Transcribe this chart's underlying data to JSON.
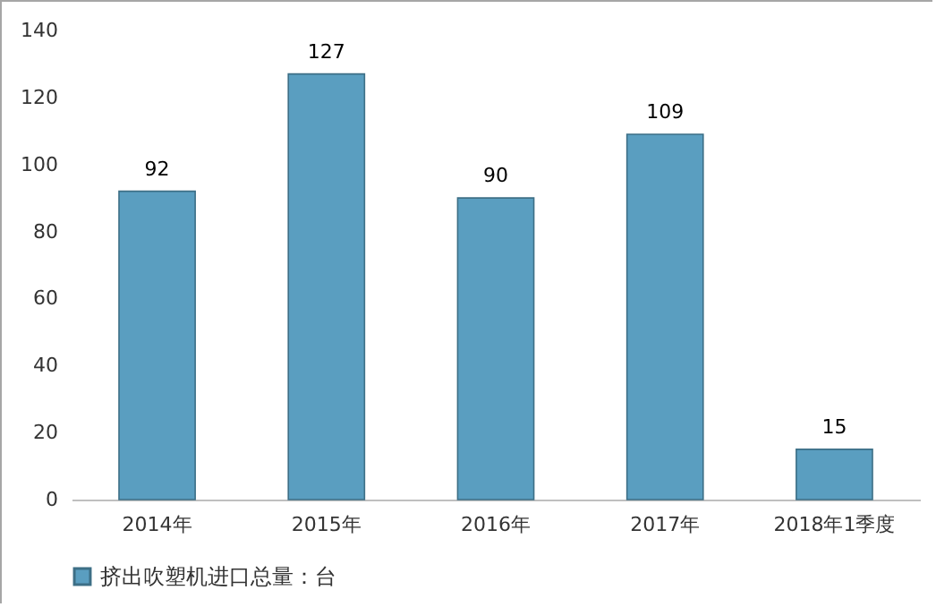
{
  "chart_data": {
    "type": "bar",
    "categories": [
      "2014年",
      "2015年",
      "2016年",
      "2017年",
      "2018年1季度"
    ],
    "series": [
      {
        "name": "挤出吹塑机进口总量：台",
        "color": "#5a9ec0",
        "values": [
          92,
          127,
          90,
          109,
          15
        ]
      }
    ],
    "ylim": [
      0,
      140
    ],
    "yticks": [
      0,
      20,
      40,
      60,
      80,
      100,
      120,
      140
    ],
    "data_labels": true,
    "legend": "bottom",
    "grid": false
  }
}
